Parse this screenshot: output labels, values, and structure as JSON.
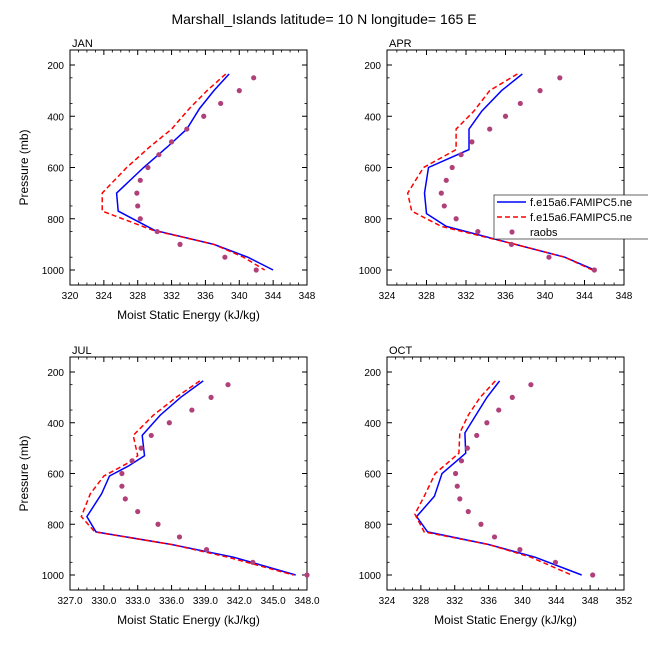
{
  "figure": {
    "title": "Marshall_Islands  latitude= 10 N longitude= 165 E"
  },
  "legend": {
    "entries": [
      {
        "label": "f.e15a6.FAMIPC5.ne",
        "style": "solid",
        "color": "#0000ff"
      },
      {
        "label": "f.e15a6.FAMIPC5.ne",
        "style": "dashed",
        "color": "#ff0000"
      },
      {
        "label": "raobs",
        "style": "marker",
        "color": "#b0407a"
      }
    ]
  },
  "chart_data": [
    {
      "type": "line",
      "title": "JAN",
      "xlabel": "Moist Static Energy (kJ/kg)",
      "ylabel": "Pressure (mb)",
      "xlim": [
        320,
        348
      ],
      "ylim": [
        1000,
        200
      ],
      "xticks": [
        320,
        324,
        328,
        332,
        336,
        340,
        344,
        348
      ],
      "xtick_labels": [
        "320",
        "324",
        "328",
        "332",
        "336",
        "340",
        "344",
        "348"
      ],
      "yticks": [
        200,
        400,
        600,
        800,
        1000
      ],
      "ytick_labels": [
        "200",
        "400",
        "600",
        "800",
        "1000"
      ],
      "series": [
        {
          "style": "solid",
          "color": "#0000ff",
          "points": [
            [
              338.8,
              235
            ],
            [
              337.0,
              300
            ],
            [
              335.3,
              370
            ],
            [
              333.8,
              450
            ],
            [
              331.5,
              520
            ],
            [
              328.7,
              600
            ],
            [
              325.5,
              700
            ],
            [
              325.7,
              770
            ],
            [
              330.0,
              845
            ],
            [
              337.0,
              900
            ],
            [
              341.0,
              950
            ],
            [
              344.0,
              1000
            ]
          ]
        },
        {
          "style": "dashed",
          "color": "#ff0000",
          "points": [
            [
              338.4,
              235
            ],
            [
              336.2,
              300
            ],
            [
              334.1,
              370
            ],
            [
              332.0,
              450
            ],
            [
              329.4,
              520
            ],
            [
              326.7,
              600
            ],
            [
              323.8,
              700
            ],
            [
              323.8,
              770
            ],
            [
              329.8,
              845
            ],
            [
              337.0,
              900
            ],
            [
              340.5,
              950
            ],
            [
              343.0,
              1000
            ]
          ]
        },
        {
          "style": "marker",
          "color": "#b0407a",
          "points": [
            [
              341.7,
              250
            ],
            [
              340.0,
              300
            ],
            [
              337.8,
              350
            ],
            [
              335.8,
              400
            ],
            [
              333.8,
              450
            ],
            [
              332.0,
              500
            ],
            [
              330.5,
              550
            ],
            [
              329.2,
              600
            ],
            [
              328.3,
              650
            ],
            [
              327.9,
              700
            ],
            [
              328.0,
              750
            ],
            [
              328.3,
              800
            ],
            [
              330.3,
              850
            ],
            [
              333.0,
              900
            ],
            [
              338.3,
              950
            ],
            [
              342.0,
              1000
            ]
          ]
        }
      ]
    },
    {
      "type": "line",
      "title": "APR",
      "xlabel": "",
      "ylabel": "",
      "xlim": [
        324,
        348
      ],
      "ylim": [
        1000,
        200
      ],
      "xticks": [
        324,
        328,
        332,
        336,
        340,
        344,
        348
      ],
      "xtick_labels": [
        "324",
        "328",
        "332",
        "336",
        "340",
        "344",
        "348"
      ],
      "yticks": [
        200,
        400,
        600,
        800,
        1000
      ],
      "ytick_labels": [
        "200",
        "400",
        "600",
        "800",
        "1000"
      ],
      "series": [
        {
          "style": "solid",
          "color": "#0000ff",
          "points": [
            [
              337.7,
              235
            ],
            [
              335.6,
              300
            ],
            [
              333.6,
              380
            ],
            [
              332.3,
              450
            ],
            [
              332.3,
              530
            ],
            [
              328.2,
              600
            ],
            [
              327.8,
              700
            ],
            [
              328.0,
              780
            ],
            [
              330.0,
              830
            ],
            [
              337.0,
              900
            ],
            [
              342.0,
              950
            ],
            [
              345.0,
              1000
            ]
          ]
        },
        {
          "style": "dashed",
          "color": "#ff0000",
          "points": [
            [
              337.2,
              235
            ],
            [
              334.4,
              300
            ],
            [
              332.8,
              380
            ],
            [
              331.0,
              450
            ],
            [
              331.0,
              530
            ],
            [
              327.7,
              600
            ],
            [
              326.1,
              700
            ],
            [
              326.5,
              770
            ],
            [
              329.5,
              830
            ],
            [
              337.0,
              900
            ],
            [
              342.0,
              950
            ],
            [
              344.8,
              1000
            ]
          ]
        },
        {
          "style": "marker",
          "color": "#b0407a",
          "points": [
            [
              341.5,
              250
            ],
            [
              339.5,
              300
            ],
            [
              337.5,
              350
            ],
            [
              336.0,
              400
            ],
            [
              334.4,
              450
            ],
            [
              332.6,
              500
            ],
            [
              331.5,
              550
            ],
            [
              330.6,
              600
            ],
            [
              330.0,
              650
            ],
            [
              329.5,
              700
            ],
            [
              329.8,
              750
            ],
            [
              331.0,
              800
            ],
            [
              333.2,
              850
            ],
            [
              336.6,
              900
            ],
            [
              340.4,
              950
            ],
            [
              345.0,
              1000
            ]
          ]
        }
      ]
    },
    {
      "type": "line",
      "title": "JUL",
      "xlabel": "Moist Static Energy (kJ/kg)",
      "ylabel": "Pressure (mb)",
      "xlim": [
        327,
        348
      ],
      "ylim": [
        1000,
        200
      ],
      "xticks": [
        327,
        330,
        333,
        336,
        339,
        342,
        345,
        348
      ],
      "xtick_labels": [
        "327.0",
        "330.0",
        "333.0",
        "336.0",
        "339.0",
        "342.0",
        "345.0",
        "348.0"
      ],
      "yticks": [
        200,
        400,
        600,
        800,
        1000
      ],
      "ytick_labels": [
        "200",
        "400",
        "600",
        "800",
        "1000"
      ],
      "series": [
        {
          "style": "solid",
          "color": "#0000ff",
          "points": [
            [
              338.8,
              235
            ],
            [
              336.8,
              300
            ],
            [
              335.0,
              370
            ],
            [
              333.4,
              450
            ],
            [
              333.6,
              530
            ],
            [
              332.2,
              570
            ],
            [
              330.5,
              610
            ],
            [
              329.8,
              680
            ],
            [
              328.5,
              770
            ],
            [
              329.3,
              830
            ],
            [
              336.0,
              880
            ],
            [
              341.5,
              930
            ],
            [
              347.0,
              1000
            ]
          ]
        },
        {
          "style": "dashed",
          "color": "#ff0000",
          "points": [
            [
              338.5,
              235
            ],
            [
              336.4,
              300
            ],
            [
              334.4,
              370
            ],
            [
              332.6,
              450
            ],
            [
              333.0,
              530
            ],
            [
              332.5,
              550
            ],
            [
              330.0,
              610
            ],
            [
              328.8,
              680
            ],
            [
              328.0,
              770
            ],
            [
              329.2,
              830
            ],
            [
              336.0,
              880
            ],
            [
              341.0,
              930
            ],
            [
              346.8,
              1000
            ]
          ]
        },
        {
          "style": "marker",
          "color": "#b0407a",
          "points": [
            [
              341.0,
              250
            ],
            [
              339.5,
              300
            ],
            [
              337.8,
              350
            ],
            [
              335.8,
              400
            ],
            [
              334.2,
              450
            ],
            [
              333.3,
              500
            ],
            [
              332.5,
              550
            ],
            [
              331.6,
              600
            ],
            [
              331.6,
              650
            ],
            [
              331.9,
              700
            ],
            [
              333.0,
              750
            ],
            [
              334.8,
              800
            ],
            [
              336.7,
              850
            ],
            [
              339.1,
              900
            ],
            [
              343.2,
              950
            ],
            [
              348.0,
              1000
            ]
          ]
        }
      ]
    },
    {
      "type": "line",
      "title": "OCT",
      "xlabel": "Moist Static Energy (kJ/kg)",
      "ylabel": "",
      "xlim": [
        324,
        352
      ],
      "ylim": [
        1000,
        200
      ],
      "xticks": [
        324,
        328,
        332,
        336,
        340,
        344,
        348,
        352
      ],
      "xtick_labels": [
        "324",
        "328",
        "332",
        "336",
        "340",
        "344",
        "348",
        "352"
      ],
      "yticks": [
        200,
        400,
        600,
        800,
        1000
      ],
      "ytick_labels": [
        "200",
        "400",
        "600",
        "800",
        "1000"
      ],
      "series": [
        {
          "style": "solid",
          "color": "#0000ff",
          "points": [
            [
              337.3,
              235
            ],
            [
              335.8,
              300
            ],
            [
              334.5,
              370
            ],
            [
              333.2,
              440
            ],
            [
              333.3,
              520
            ],
            [
              330.5,
              600
            ],
            [
              329.6,
              690
            ],
            [
              327.5,
              770
            ],
            [
              328.8,
              830
            ],
            [
              336.0,
              880
            ],
            [
              341.5,
              930
            ],
            [
              347.0,
              1000
            ]
          ]
        },
        {
          "style": "dashed",
          "color": "#ff0000",
          "points": [
            [
              336.8,
              235
            ],
            [
              335.0,
              300
            ],
            [
              333.6,
              370
            ],
            [
              332.6,
              440
            ],
            [
              332.5,
              520
            ],
            [
              329.7,
              600
            ],
            [
              328.4,
              690
            ],
            [
              327.3,
              760
            ],
            [
              328.4,
              830
            ],
            [
              336.0,
              880
            ],
            [
              341.0,
              930
            ],
            [
              345.8,
              1000
            ]
          ]
        },
        {
          "style": "marker",
          "color": "#b0407a",
          "points": [
            [
              341.0,
              250
            ],
            [
              338.8,
              300
            ],
            [
              337.2,
              350
            ],
            [
              335.8,
              400
            ],
            [
              334.6,
              450
            ],
            [
              333.5,
              500
            ],
            [
              332.8,
              550
            ],
            [
              332.1,
              600
            ],
            [
              332.3,
              650
            ],
            [
              332.6,
              700
            ],
            [
              333.6,
              750
            ],
            [
              335.1,
              800
            ],
            [
              336.7,
              850
            ],
            [
              339.7,
              900
            ],
            [
              343.9,
              950
            ],
            [
              348.3,
              1000
            ]
          ]
        }
      ]
    }
  ]
}
